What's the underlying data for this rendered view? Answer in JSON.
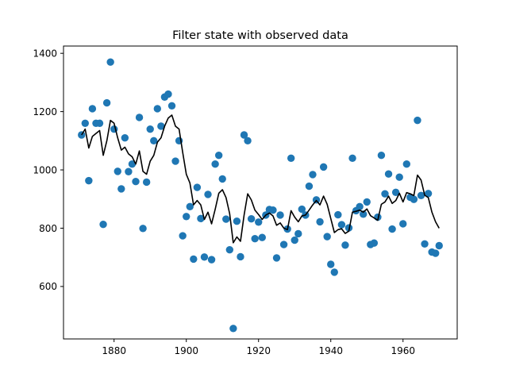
{
  "chart_data": {
    "type": "scatter",
    "title": "Filter state with observed data",
    "xlabel": "",
    "ylabel": "",
    "xlim": [
      1866,
      1975
    ],
    "ylim": [
      420,
      1425
    ],
    "xticks": [
      1880,
      1900,
      1920,
      1940,
      1960
    ],
    "yticks": [
      600,
      800,
      1000,
      1200,
      1400
    ],
    "grid": false,
    "legend": "none",
    "series": [
      {
        "kind": "scatter",
        "color": "#1f77b4",
        "x": [
          1871,
          1872,
          1873,
          1874,
          1875,
          1876,
          1877,
          1878,
          1879,
          1880,
          1881,
          1882,
          1883,
          1884,
          1885,
          1886,
          1887,
          1888,
          1889,
          1890,
          1891,
          1892,
          1893,
          1894,
          1895,
          1896,
          1897,
          1898,
          1899,
          1900,
          1901,
          1902,
          1903,
          1904,
          1905,
          1906,
          1907,
          1908,
          1909,
          1910,
          1911,
          1912,
          1913,
          1914,
          1915,
          1916,
          1917,
          1918,
          1919,
          1920,
          1921,
          1922,
          1923,
          1924,
          1925,
          1926,
          1927,
          1928,
          1929,
          1930,
          1931,
          1932,
          1933,
          1934,
          1935,
          1936,
          1937,
          1938,
          1939,
          1940,
          1941,
          1942,
          1943,
          1944,
          1945,
          1946,
          1947,
          1948,
          1949,
          1950,
          1951,
          1952,
          1953,
          1954,
          1955,
          1956,
          1957,
          1958,
          1959,
          1960,
          1961,
          1962,
          1963,
          1964,
          1965,
          1966,
          1967,
          1968,
          1969,
          1970
        ],
        "y": [
          1120,
          1160,
          963,
          1210,
          1160,
          1160,
          813,
          1230,
          1370,
          1140,
          995,
          935,
          1110,
          994,
          1020,
          960,
          1180,
          799,
          958,
          1140,
          1100,
          1210,
          1150,
          1250,
          1260,
          1220,
          1030,
          1100,
          774,
          840,
          874,
          694,
          940,
          833,
          701,
          916,
          692,
          1020,
          1050,
          969,
          831,
          726,
          456,
          824,
          702,
          1120,
          1100,
          832,
          764,
          821,
          768,
          845,
          864,
          862,
          698,
          845,
          744,
          797,
          1040,
          759,
          781,
          865,
          845,
          944,
          984,
          897,
          822,
          1010,
          771,
          676,
          649,
          846,
          812,
          742,
          801,
          1040,
          860,
          874,
          848,
          890,
          744,
          749,
          838,
          1050,
          918,
          986,
          797,
          923,
          975,
          815,
          1020,
          906,
          899,
          1170,
          912,
          746,
          919,
          718,
          714,
          740
        ]
      },
      {
        "kind": "line",
        "color": "#000000",
        "x": [
          1871,
          1872,
          1873,
          1874,
          1875,
          1876,
          1877,
          1878,
          1879,
          1880,
          1881,
          1882,
          1883,
          1884,
          1885,
          1886,
          1887,
          1888,
          1889,
          1890,
          1891,
          1892,
          1893,
          1894,
          1895,
          1896,
          1897,
          1898,
          1899,
          1900,
          1901,
          1902,
          1903,
          1904,
          1905,
          1906,
          1907,
          1908,
          1909,
          1910,
          1911,
          1912,
          1913,
          1914,
          1915,
          1916,
          1917,
          1918,
          1919,
          1920,
          1921,
          1922,
          1923,
          1924,
          1925,
          1926,
          1927,
          1928,
          1929,
          1930,
          1931,
          1932,
          1933,
          1934,
          1935,
          1936,
          1937,
          1938,
          1939,
          1940,
          1941,
          1942,
          1943,
          1944,
          1945,
          1946,
          1947,
          1948,
          1949,
          1950,
          1951,
          1952,
          1953,
          1954,
          1955,
          1956,
          1957,
          1958,
          1959,
          1960,
          1961,
          1962,
          1963,
          1964,
          1965,
          1966,
          1967,
          1968,
          1969,
          1970
        ],
        "y": [
          1120,
          1140,
          1075,
          1115,
          1125,
          1135,
          1050,
          1100,
          1170,
          1160,
          1110,
          1068,
          1078,
          1055,
          1045,
          1020,
          1065,
          995,
          985,
          1030,
          1050,
          1095,
          1110,
          1150,
          1178,
          1188,
          1150,
          1140,
          1060,
          985,
          955,
          880,
          895,
          880,
          830,
          855,
          815,
          865,
          920,
          932,
          905,
          850,
          750,
          770,
          755,
          845,
          918,
          897,
          862,
          847,
          830,
          845,
          852,
          842,
          810,
          818,
          800,
          795,
          860,
          838,
          822,
          842,
          845,
          862,
          880,
          895,
          880,
          910,
          882,
          833,
          785,
          795,
          798,
          782,
          790,
          855,
          858,
          862,
          855,
          866,
          843,
          835,
          827,
          882,
          890,
          910,
          885,
          895,
          920,
          890,
          922,
          918,
          912,
          982,
          965,
          913,
          905,
          855,
          822,
          800
        ]
      }
    ]
  }
}
